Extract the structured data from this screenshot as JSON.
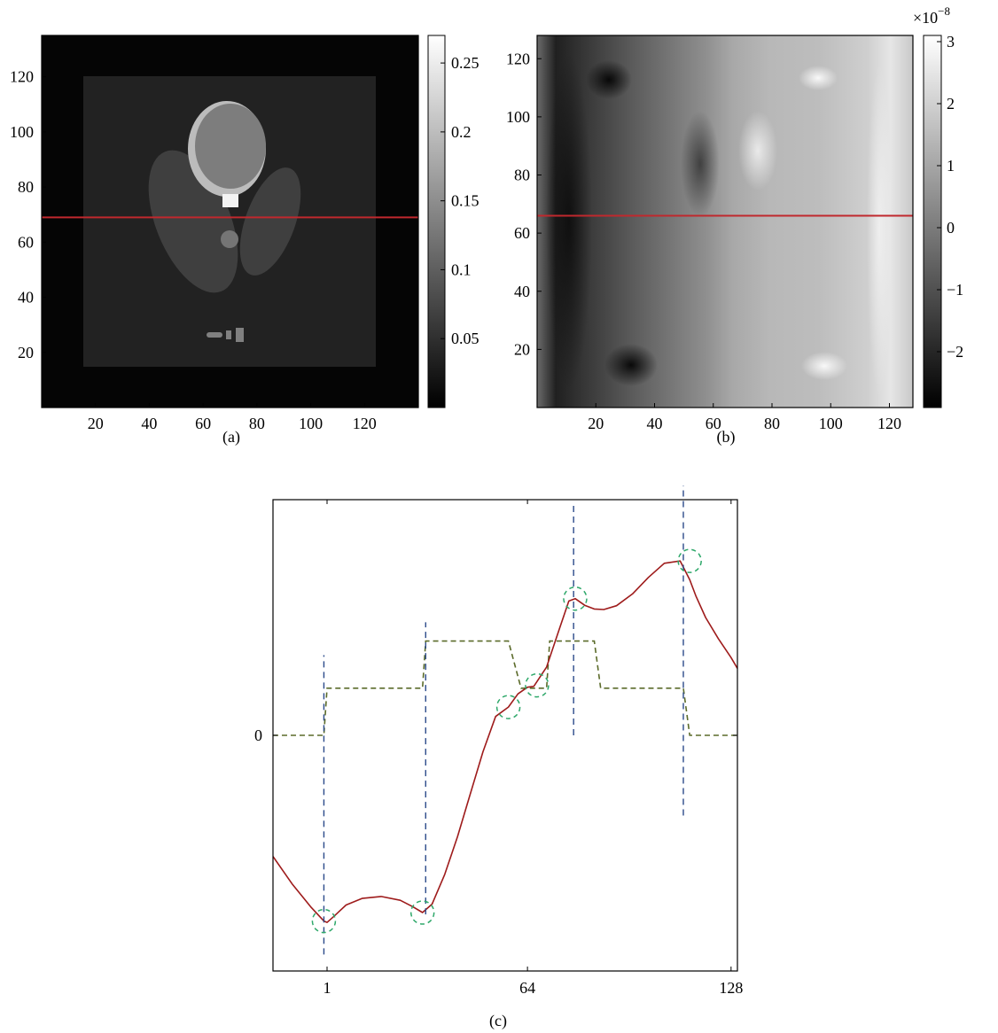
{
  "chart_data": [
    {
      "panel": "(a)",
      "type": "heatmap",
      "caption": "(a)",
      "xlim": [
        0,
        140
      ],
      "ylim": [
        0,
        135
      ],
      "xticks": [
        20,
        40,
        60,
        80,
        100,
        120
      ],
      "yticks": [
        20,
        40,
        60,
        80,
        100,
        120
      ],
      "colorbar": {
        "min": 0,
        "max": 0.27,
        "ticks": [
          0.05,
          0.1,
          0.15,
          0.2,
          0.25
        ],
        "tick_labels": [
          "0.05",
          "0.1",
          "0.15",
          "0.2",
          "0.25"
        ],
        "colormap": "gray"
      },
      "profile_line_y": 69,
      "profile_line_color": "#c0282d"
    },
    {
      "panel": "(b)",
      "type": "heatmap",
      "caption": "(b)",
      "xlim": [
        0,
        128
      ],
      "ylim": [
        0,
        128
      ],
      "xticks": [
        20,
        40,
        60,
        80,
        100,
        120
      ],
      "yticks": [
        20,
        40,
        60,
        80,
        100,
        120
      ],
      "colorbar": {
        "min": -2.9,
        "max": 3.1,
        "ticks": [
          -2,
          -1,
          0,
          1,
          2,
          3
        ],
        "tick_labels": [
          "−2",
          "−1",
          "0",
          "1",
          "2",
          "3"
        ],
        "multiplier": "×10",
        "multiplier_exp": "−8",
        "colormap": "gray"
      },
      "profile_line_y": 66,
      "profile_line_color": "#c0282d"
    },
    {
      "panel": "(c)",
      "type": "line",
      "caption": "(c)",
      "xlim": [
        -16,
        130
      ],
      "ylim": [
        -50,
        50
      ],
      "xticks": [
        1,
        64,
        128
      ],
      "xtick_labels": [
        "1",
        "64",
        "128"
      ],
      "yticks": [
        0
      ],
      "ytick_labels": [
        "0"
      ],
      "series": [
        {
          "style": "solid",
          "color": "#9e1b1b",
          "x": [
            -16,
            -10,
            -4,
            0,
            1,
            3,
            7,
            12,
            18,
            24,
            28,
            31,
            34,
            38,
            42,
            46,
            50,
            54,
            58,
            61,
            64,
            66,
            70,
            74,
            77,
            79,
            82,
            85,
            88,
            92,
            97,
            102,
            107,
            112,
            115,
            117,
            120,
            124,
            128,
            130
          ],
          "y": [
            -25.7,
            -31.5,
            -36.5,
            -39.4,
            -39.7,
            -38.5,
            -36.0,
            -34.6,
            -34.2,
            -35.0,
            -36.4,
            -37.6,
            -35.8,
            -29.5,
            -21.5,
            -12.5,
            -3.5,
            4.0,
            6.0,
            8.8,
            10.2,
            10.4,
            14.5,
            22.5,
            28.5,
            29.0,
            27.6,
            26.8,
            26.7,
            27.5,
            30.0,
            33.5,
            36.5,
            37.0,
            33.0,
            29.5,
            25.0,
            20.5,
            16.5,
            14.2
          ]
        },
        {
          "style": "dashed",
          "color": "#5b6b2a",
          "x": [
            -16,
            0,
            1,
            31,
            32,
            58,
            62,
            70,
            71,
            85,
            87,
            113,
            115,
            130
          ],
          "y": [
            0,
            0,
            10,
            10,
            20,
            20,
            10,
            10,
            20,
            20,
            10,
            10,
            0,
            0
          ]
        }
      ],
      "vlines": [
        {
          "x": 0,
          "y_from": -46.5,
          "y_to": 17
        },
        {
          "x": 32,
          "y_from": -38,
          "y_to": 24
        },
        {
          "x": 78.5,
          "y_from": 0,
          "y_to": 49
        },
        {
          "x": 113,
          "y_from": -17,
          "y_to": 53
        }
      ],
      "markers": [
        {
          "x": 0,
          "y": -39.4
        },
        {
          "x": 31,
          "y": -37.6
        },
        {
          "x": 58,
          "y": 6.0
        },
        {
          "x": 67,
          "y": 10.6
        },
        {
          "x": 79,
          "y": 29.0
        },
        {
          "x": 115,
          "y": 37.0
        }
      ],
      "vline_color": "#2b4a8a",
      "marker_color": "#2ea86a"
    }
  ]
}
